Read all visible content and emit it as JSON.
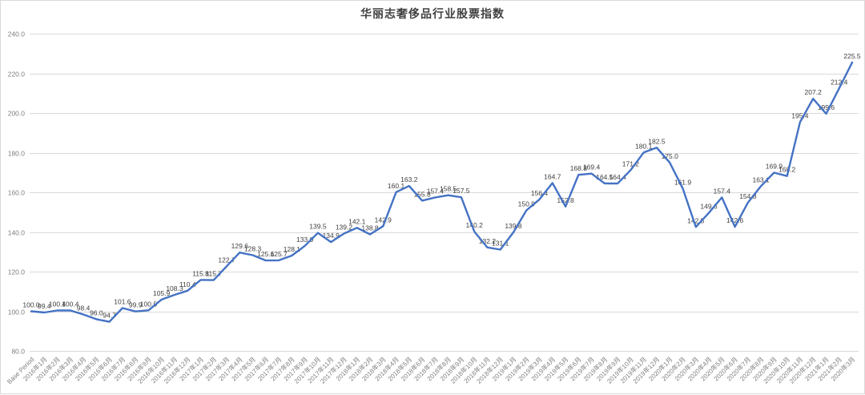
{
  "chart_data": {
    "type": "line",
    "title": "华丽志奢侈品行业股票指数",
    "legend": "none",
    "grid": true,
    "ylim": [
      80,
      240
    ],
    "ytick_step": 20,
    "y_tick_labels": [
      "240.0",
      "220.0",
      "200.0",
      "180.0",
      "160.0",
      "140.0",
      "120.0",
      "100.0",
      "80.0"
    ],
    "categories": [
      "Base Period",
      "2016年1月",
      "2016年2月",
      "2016年3月",
      "2016年4月",
      "2016年5月",
      "2016年6月",
      "2016年7月",
      "2016年8月",
      "2016年9月",
      "2016年10月",
      "2016年11月",
      "2016年12月",
      "2017年1月",
      "2017年2月",
      "2017年3月",
      "2017年4月",
      "2017年5月",
      "2017年6月",
      "2017年7月",
      "2017年8月",
      "2017年9月",
      "2017年10月",
      "2017年11月",
      "2017年12月",
      "2018年1月",
      "2018年2月",
      "2018年3月",
      "2018年4月",
      "2018年5月",
      "2018年6月",
      "2018年7月",
      "2018年8月",
      "2018年9月",
      "2018年10月",
      "2018年11月",
      "2018年12月",
      "2019年1月",
      "2019年2月",
      "2019年3月",
      "2019年4月",
      "2019年5月",
      "2019年6月",
      "2019年7月",
      "2019年8月",
      "2019年9月",
      "2019年10月",
      "2019年11月",
      "2019年12月",
      "2020年1月",
      "2020年2月",
      "2020年3月",
      "2020年4月",
      "2020年5月",
      "2020年6月",
      "2020年7月",
      "2020年8月",
      "2020年9月",
      "2020年10月",
      "2020年11月",
      "2020年12月",
      "2021年1月",
      "2021年2月",
      "2020年3月"
    ],
    "values": [
      100.0,
      99.4,
      100.4,
      100.4,
      98.4,
      96.0,
      94.7,
      101.6,
      99.9,
      100.5,
      105.9,
      108.3,
      110.4,
      115.8,
      115.7,
      122.7,
      129.6,
      128.3,
      125.6,
      125.7,
      128.1,
      133.0,
      139.5,
      134.9,
      139.2,
      142.1,
      138.8,
      142.9,
      160.1,
      163.2,
      155.8,
      157.4,
      158.5,
      157.5,
      140.2,
      132.2,
      131.1,
      139.8,
      150.9,
      156.4,
      164.7,
      152.8,
      168.8,
      169.4,
      164.5,
      164.4,
      171.2,
      180.1,
      182.5,
      175.0,
      161.9,
      142.5,
      149.6,
      157.4,
      142.6,
      154.8,
      163.1,
      169.9,
      168.2,
      195.4,
      207.2,
      199.6,
      212.4,
      225.5
    ],
    "data_labels_shown": true,
    "colors": {
      "line": "#4472C4",
      "data_label": "#404040",
      "axis_label": "#7F7F7F",
      "gridline": "#D9D9D9",
      "title": "#404040",
      "background": "#FFFFFF",
      "border": "#D9D9D9"
    }
  }
}
